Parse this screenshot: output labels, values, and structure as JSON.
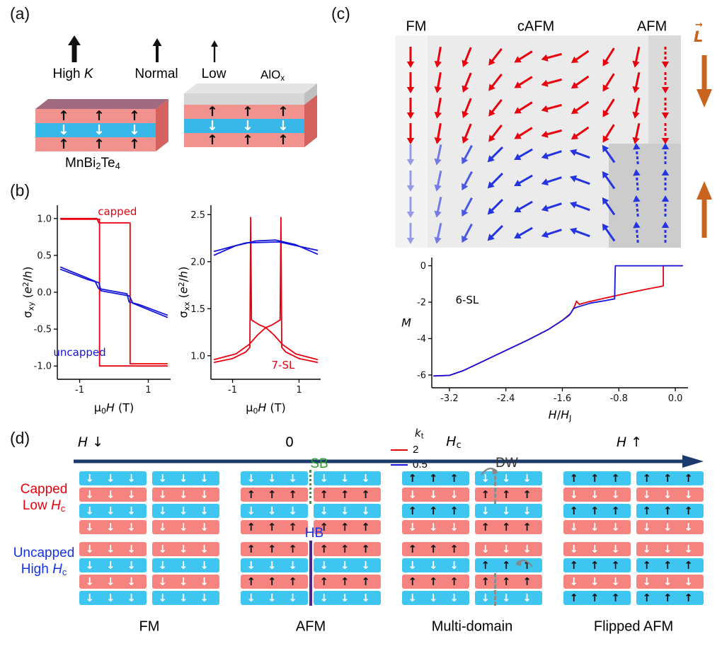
{
  "panel_a": {
    "label": "(a)",
    "anisotropy_legend": [
      {
        "label_parts": [
          [
            "High "
          ],
          [
            "K",
            "it"
          ]
        ]
      },
      {
        "label_parts": [
          [
            "Normal"
          ]
        ]
      },
      {
        "label_parts": [
          [
            "Low"
          ]
        ]
      }
    ],
    "cap_label": "AlOx",
    "cap_label_parts": [
      [
        "AlO"
      ],
      [
        "x",
        "sub"
      ]
    ],
    "material_label": "MnBi2Te4",
    "material_label_parts": [
      [
        "MnBi"
      ],
      [
        "2",
        "sub"
      ],
      [
        "Te"
      ],
      [
        "4",
        "sub"
      ]
    ],
    "slab_layers": [
      {
        "color": "#f2928e",
        "arrow": "up"
      },
      {
        "color": "#38b8e8",
        "arrow": "down"
      },
      {
        "color": "#f2928e",
        "arrow": "up"
      }
    ],
    "slabs": [
      {
        "capped": false
      },
      {
        "capped": true
      }
    ]
  },
  "panel_b": {
    "label": "(b)"
  },
  "panel_c": {
    "label": "(c)",
    "regions": [
      "FM",
      "cAFM",
      "AFM"
    ],
    "neel_label": "L",
    "neel_arrow": "→",
    "spin_field": {
      "cols": 10,
      "top_color": "#e8000d",
      "bottom_color": "#2334e0",
      "top_angles": [
        0,
        10,
        22,
        38,
        58,
        75,
        55,
        32,
        12,
        0
      ],
      "bottom_angles": [
        0,
        12,
        28,
        45,
        60,
        72,
        110,
        145,
        175,
        180
      ],
      "bottom_opacity": [
        0.45,
        0.6,
        0.8,
        1,
        1,
        1,
        1,
        1,
        1,
        1
      ],
      "top_dashed_cols": [
        9
      ],
      "bottom_dashed_cols": [
        8,
        9
      ]
    }
  },
  "panel_d": {
    "label": "(d)",
    "axis_labels": [
      {
        "parts": [
          [
            "H",
            "it"
          ],
          [
            " ↓"
          ]
        ]
      },
      {
        "parts": [
          [
            "0"
          ]
        ]
      },
      {
        "parts": [
          [
            "H",
            "it"
          ],
          [
            "c",
            "sub"
          ]
        ]
      },
      {
        "parts": [
          [
            "H",
            "it"
          ],
          [
            " ↑"
          ]
        ]
      }
    ],
    "row_labels": [
      {
        "color": "#e8000d",
        "line1": "Capped",
        "line2_parts": [
          [
            "Low "
          ],
          [
            "H",
            "it"
          ],
          [
            "c",
            "sub"
          ]
        ]
      },
      {
        "color": "#1432e6",
        "line1": "Uncapped",
        "line2_parts": [
          [
            "High "
          ],
          [
            "H",
            "it"
          ],
          [
            "c",
            "sub"
          ]
        ]
      }
    ],
    "state_labels": [
      "FM",
      "AFM",
      "Multi-domain",
      "Flipped AFM"
    ],
    "annotations": {
      "sb": "SB",
      "hb": "HB",
      "dw": "DW"
    },
    "bar_colors": {
      "p": "#f5837f",
      "c": "#3fc6f0"
    },
    "stack_rows": [
      {
        "name": "capped",
        "stacks": [
          {
            "layers": [
              [
                "c",
                "d",
                "d"
              ],
              [
                "p",
                "d",
                "d"
              ],
              [
                "c",
                "d",
                "d"
              ],
              [
                "p",
                "d",
                "d"
              ]
            ]
          },
          {
            "layers": [
              [
                "c",
                "d",
                "d"
              ],
              [
                "p",
                "u",
                "u"
              ],
              [
                "c",
                "d",
                "d"
              ],
              [
                "p",
                "u",
                "u"
              ]
            ],
            "divider": "sb"
          },
          {
            "layers": [
              [
                "c",
                "u",
                "d"
              ],
              [
                "p",
                "d",
                "u"
              ],
              [
                "c",
                "u",
                "d"
              ],
              [
                "p",
                "d",
                "u"
              ]
            ],
            "divider": "dw"
          },
          {
            "layers": [
              [
                "c",
                "u",
                "u"
              ],
              [
                "p",
                "d",
                "d"
              ],
              [
                "c",
                "u",
                "u"
              ],
              [
                "p",
                "d",
                "d"
              ]
            ]
          }
        ]
      },
      {
        "name": "uncapped",
        "stacks": [
          {
            "layers": [
              [
                "p",
                "d",
                "d"
              ],
              [
                "c",
                "d",
                "d"
              ],
              [
                "p",
                "d",
                "d"
              ],
              [
                "c",
                "d",
                "d"
              ]
            ]
          },
          {
            "layers": [
              [
                "p",
                "u",
                "u"
              ],
              [
                "c",
                "d",
                "d"
              ],
              [
                "p",
                "u",
                "u"
              ],
              [
                "c",
                "d",
                "d"
              ]
            ],
            "divider": "hb"
          },
          {
            "layers": [
              [
                "p",
                "u",
                "d"
              ],
              [
                "c",
                "d",
                "u"
              ],
              [
                "p",
                "u",
                "u"
              ],
              [
                "c",
                "d",
                "d"
              ]
            ],
            "divider": "dw2"
          },
          {
            "layers": [
              [
                "p",
                "d",
                "d"
              ],
              [
                "c",
                "u",
                "u"
              ],
              [
                "p",
                "d",
                "d"
              ],
              [
                "c",
                "u",
                "u"
              ]
            ]
          }
        ]
      }
    ]
  },
  "chart_data": [
    {
      "id": "sigma_xy",
      "type": "line",
      "xlabel": "u0H (T)",
      "ylabel": "sigma_xy (e2/h)",
      "ylabel_parts": [
        [
          "σ"
        ],
        [
          "xy",
          "sub"
        ],
        [
          " ("
        ],
        [
          "e",
          "it"
        ],
        [
          "2",
          "sup"
        ],
        [
          "/"
        ],
        [
          "h",
          "it"
        ],
        [
          ")"
        ]
      ],
      "xlabel_parts": [
        [
          "μ"
        ],
        [
          "0",
          "sub"
        ],
        [
          "H",
          "it"
        ],
        [
          " (T)"
        ]
      ],
      "xlim": [
        -1.65,
        1.65
      ],
      "ylim": [
        -1.18,
        1.18
      ],
      "xticks": {
        "values": [
          -1,
          1
        ],
        "labels": [
          "-1",
          "1"
        ]
      },
      "yticks": {
        "values": [
          1.0,
          0.5,
          0.0,
          -0.5,
          -1.0
        ],
        "labels": [
          "1.0",
          "0.5",
          "0.0",
          "-0.5",
          "-1.0"
        ]
      },
      "series": [
        {
          "name": "capped",
          "color": "#e8000d",
          "paths": [
            [
              [
                -1.55,
                1.0
              ],
              [
                -0.5,
                1.0
              ],
              [
                -0.44,
                0.94
              ],
              [
                0.47,
                0.94
              ],
              [
                0.47,
                -0.97
              ],
              [
                1.55,
                -0.97
              ]
            ],
            [
              [
                1.55,
                -1.0
              ],
              [
                -0.42,
                -1.0
              ],
              [
                -0.42,
                0.99
              ],
              [
                -1.55,
                0.99
              ]
            ]
          ]
        },
        {
          "name": "uncapped",
          "color": "#1414dc",
          "paths": [
            [
              [
                -1.55,
                0.34
              ],
              [
                -0.55,
                0.15
              ],
              [
                -0.45,
                0.05
              ],
              [
                0.38,
                -0.02
              ],
              [
                0.44,
                -0.13
              ],
              [
                0.75,
                -0.17
              ],
              [
                1.55,
                -0.31
              ]
            ],
            [
              [
                1.55,
                -0.34
              ],
              [
                0.55,
                -0.15
              ],
              [
                0.45,
                -0.05
              ],
              [
                -0.38,
                0.02
              ],
              [
                -0.44,
                0.13
              ],
              [
                -0.75,
                0.17
              ],
              [
                -1.55,
                0.31
              ]
            ]
          ]
        }
      ],
      "annotations": [
        {
          "text": "capped",
          "x": 0.1,
          "y": 1.09,
          "color": "#e8000d"
        },
        {
          "text": "uncapped",
          "x": -1.0,
          "y": -0.82,
          "color": "#1414dc"
        }
      ]
    },
    {
      "id": "sigma_xx",
      "type": "line",
      "xlabel": "u0H (T)",
      "ylabel": "sigma_xx (e2/h)",
      "ylabel_parts": [
        [
          "σ"
        ],
        [
          "xx",
          "sub"
        ],
        [
          " ("
        ],
        [
          "e",
          "it"
        ],
        [
          "2",
          "sup"
        ],
        [
          "/"
        ],
        [
          "h",
          "it"
        ],
        [
          ")"
        ]
      ],
      "xlabel_parts": [
        [
          "μ"
        ],
        [
          "0",
          "sub"
        ],
        [
          "H",
          "it"
        ],
        [
          " (T)"
        ]
      ],
      "xlim": [
        -1.65,
        1.65
      ],
      "ylim": [
        0.75,
        2.6
      ],
      "xticks": {
        "values": [
          -1,
          1
        ],
        "labels": [
          "-1",
          "1"
        ]
      },
      "yticks": {
        "values": [
          1.0,
          1.5,
          2.0,
          2.5
        ],
        "labels": [
          "1.0",
          "1.5",
          "2.0",
          "2.5"
        ]
      },
      "series": [
        {
          "name": "7-SL capped",
          "color": "#e8000d",
          "paths": [
            [
              [
                -1.55,
                0.93
              ],
              [
                -1.0,
                0.97
              ],
              [
                -0.6,
                1.04
              ],
              [
                -0.48,
                1.09
              ],
              [
                -0.455,
                2.47
              ],
              [
                -0.43,
                1.38
              ],
              [
                -0.2,
                1.33
              ],
              [
                0,
                1.3
              ],
              [
                0.25,
                1.22
              ],
              [
                0.5,
                1.12
              ],
              [
                0.9,
                1.02
              ],
              [
                1.55,
                0.96
              ]
            ],
            [
              [
                1.55,
                0.93
              ],
              [
                1.0,
                0.97
              ],
              [
                0.6,
                1.04
              ],
              [
                0.48,
                1.09
              ],
              [
                0.455,
                2.47
              ],
              [
                0.43,
                1.38
              ],
              [
                0.2,
                1.33
              ],
              [
                0,
                1.3
              ],
              [
                -0.25,
                1.22
              ],
              [
                -0.5,
                1.12
              ],
              [
                -0.9,
                1.02
              ],
              [
                -1.55,
                0.96
              ]
            ]
          ]
        },
        {
          "name": "7-SL uncapped",
          "color": "#1414dc",
          "paths": [
            [
              [
                -1.55,
                2.07
              ],
              [
                -0.9,
                2.17
              ],
              [
                -0.3,
                2.22
              ],
              [
                0.3,
                2.23
              ],
              [
                0.9,
                2.18
              ],
              [
                1.55,
                2.08
              ]
            ],
            [
              [
                -1.55,
                2.11
              ],
              [
                -0.6,
                2.2
              ],
              [
                0.4,
                2.21
              ],
              [
                1.55,
                2.12
              ]
            ]
          ]
        }
      ],
      "annotations": [
        {
          "text": "7-SL",
          "x": 0.52,
          "y": 0.9,
          "color": "#e8000d"
        }
      ]
    },
    {
      "id": "magnetization",
      "type": "line",
      "xlabel": "H/H_J",
      "ylabel": "M",
      "ylabel_parts": [
        [
          "M",
          "it"
        ]
      ],
      "ylabel_rotate": false,
      "xlabel_parts": [
        [
          "H",
          "it"
        ],
        [
          "/"
        ],
        [
          "H",
          "it"
        ],
        [
          "J",
          "sub"
        ]
      ],
      "xlim": [
        -3.45,
        0.18
      ],
      "ylim": [
        -6.7,
        0.45
      ],
      "xticks": {
        "values": [
          -3.2,
          -2.4,
          -1.6,
          -0.8,
          0.0
        ],
        "labels": [
          "-3.2",
          "-2.4",
          "-1.6",
          "-0.8",
          "0.0"
        ]
      },
      "yticks": {
        "values": [
          0,
          -2,
          -4,
          -6
        ],
        "labels": [
          "0",
          "-2",
          "-4",
          "-6"
        ]
      },
      "series": [
        {
          "name": "2",
          "color": "#e8000d",
          "paths": [
            [
              [
                -3.42,
                -6.05
              ],
              [
                -3.2,
                -6.02
              ],
              [
                -3.0,
                -5.75
              ],
              [
                -2.7,
                -5.2
              ],
              [
                -2.4,
                -4.65
              ],
              [
                -2.1,
                -4.1
              ],
              [
                -1.8,
                -3.5
              ],
              [
                -1.6,
                -3.0
              ],
              [
                -1.48,
                -2.6
              ],
              [
                -1.43,
                -2.25
              ],
              [
                -1.4,
                -1.95
              ],
              [
                -1.36,
                -2.12
              ],
              [
                -1.25,
                -2.0
              ],
              [
                -1.0,
                -1.78
              ],
              [
                -0.7,
                -1.52
              ],
              [
                -0.4,
                -1.28
              ],
              [
                -0.2,
                -1.13
              ],
              [
                -0.17,
                -1.1
              ],
              [
                -0.17,
                0.0
              ],
              [
                0.1,
                0.0
              ]
            ]
          ]
        },
        {
          "name": "0.5",
          "color": "#1414dc",
          "paths": [
            [
              [
                -3.42,
                -6.05
              ],
              [
                -3.2,
                -6.02
              ],
              [
                -3.0,
                -5.75
              ],
              [
                -2.7,
                -5.2
              ],
              [
                -2.4,
                -4.65
              ],
              [
                -2.1,
                -4.1
              ],
              [
                -1.8,
                -3.5
              ],
              [
                -1.6,
                -3.0
              ],
              [
                -1.5,
                -2.7
              ],
              [
                -1.44,
                -2.35
              ],
              [
                -1.4,
                -2.28
              ],
              [
                -1.2,
                -2.05
              ],
              [
                -1.0,
                -1.92
              ],
              [
                -0.86,
                -1.82
              ],
              [
                -0.85,
                0.0
              ],
              [
                0.1,
                0.0
              ]
            ]
          ]
        }
      ],
      "annotations": [
        {
          "text": "6-SL",
          "x": -2.95,
          "y": -1.9,
          "color": "#000000"
        }
      ],
      "legend": {
        "title_parts": [
          [
            "k",
            "it"
          ],
          [
            "t",
            "sub"
          ]
        ],
        "entries": [
          {
            "label": "2",
            "color": "#e8000d"
          },
          {
            "label": "0.5",
            "color": "#1414dc"
          }
        ],
        "pos": [
          0.68,
          0.42
        ]
      }
    }
  ]
}
